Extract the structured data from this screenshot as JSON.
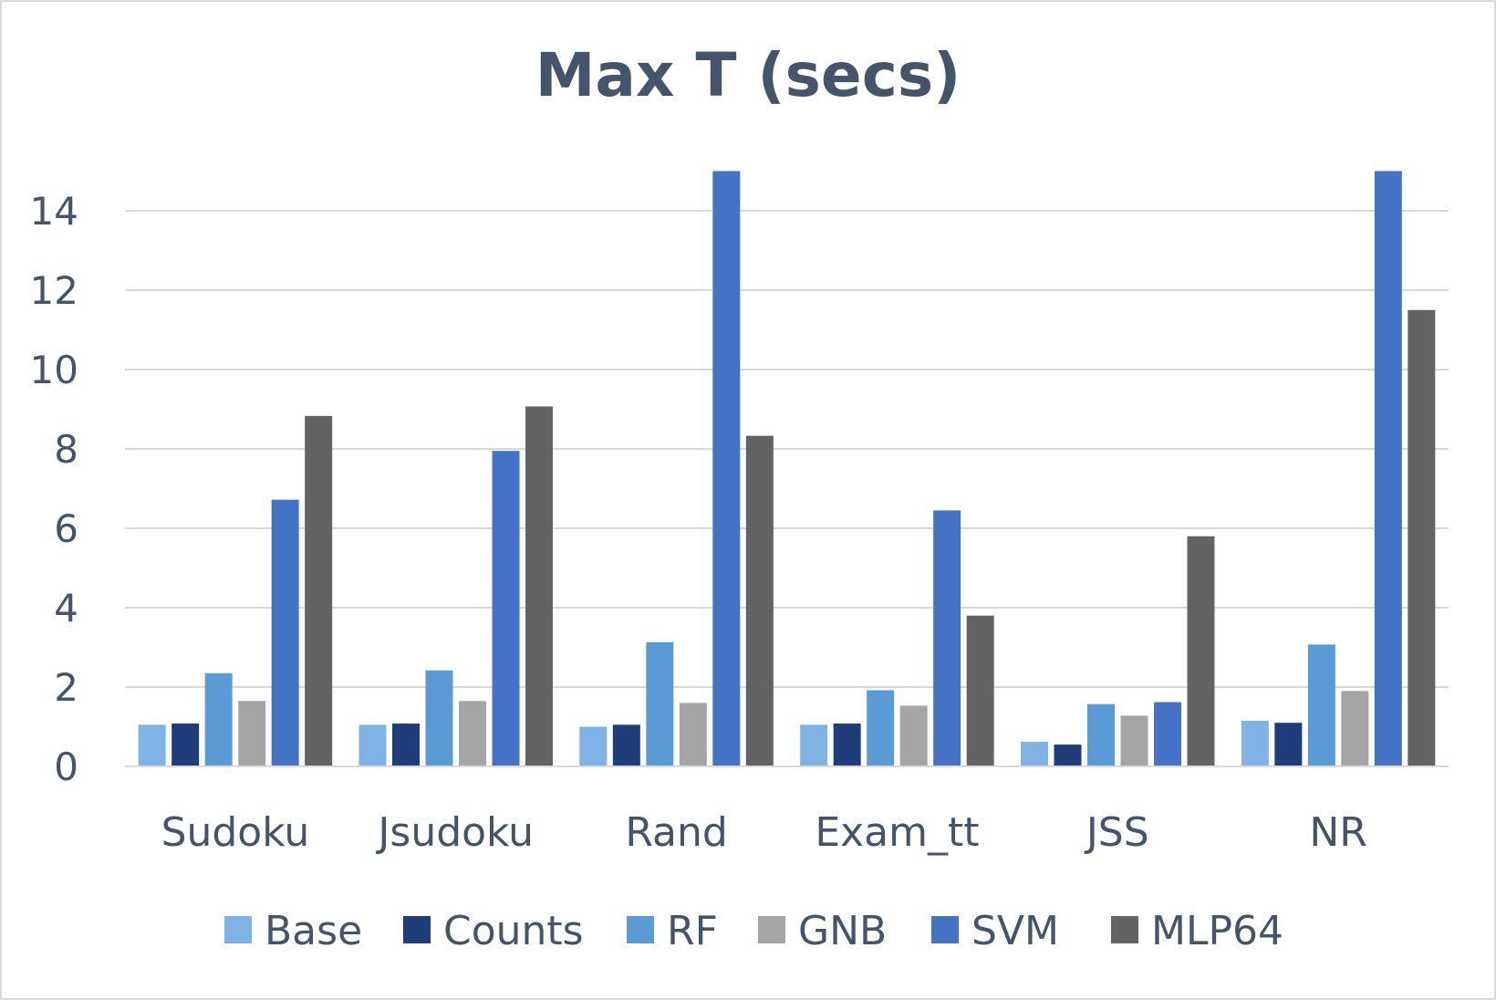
{
  "chart_data": {
    "type": "bar",
    "title": "Max T (secs)",
    "xlabel": "",
    "ylabel": "",
    "categories": [
      "Sudoku",
      "Jsudoku",
      "Rand",
      "Exam_tt",
      "JSS",
      "NR"
    ],
    "ylim": [
      0,
      15
    ],
    "yticks": [
      0,
      2,
      4,
      6,
      8,
      10,
      12,
      14
    ],
    "grid": true,
    "legend_position": "bottom",
    "series": [
      {
        "name": "Base",
        "color": "#7fb2e5",
        "values": [
          1.05,
          1.05,
          1.0,
          1.05,
          0.62,
          1.15
        ]
      },
      {
        "name": "Counts",
        "color": "#1f3d7a",
        "values": [
          1.08,
          1.08,
          1.05,
          1.08,
          0.55,
          1.1
        ]
      },
      {
        "name": "RF",
        "color": "#5b9bd5",
        "values": [
          2.35,
          2.42,
          3.13,
          1.92,
          1.57,
          3.07
        ]
      },
      {
        "name": "GNB",
        "color": "#a5a5a5",
        "values": [
          1.65,
          1.65,
          1.6,
          1.53,
          1.28,
          1.9
        ]
      },
      {
        "name": "SVM",
        "color": "#4472c4",
        "values": [
          6.72,
          7.95,
          15.0,
          6.45,
          1.62,
          15.0
        ]
      },
      {
        "name": "MLP64",
        "color": "#636363",
        "values": [
          8.83,
          9.07,
          8.33,
          3.8,
          5.8,
          11.5
        ]
      }
    ]
  }
}
